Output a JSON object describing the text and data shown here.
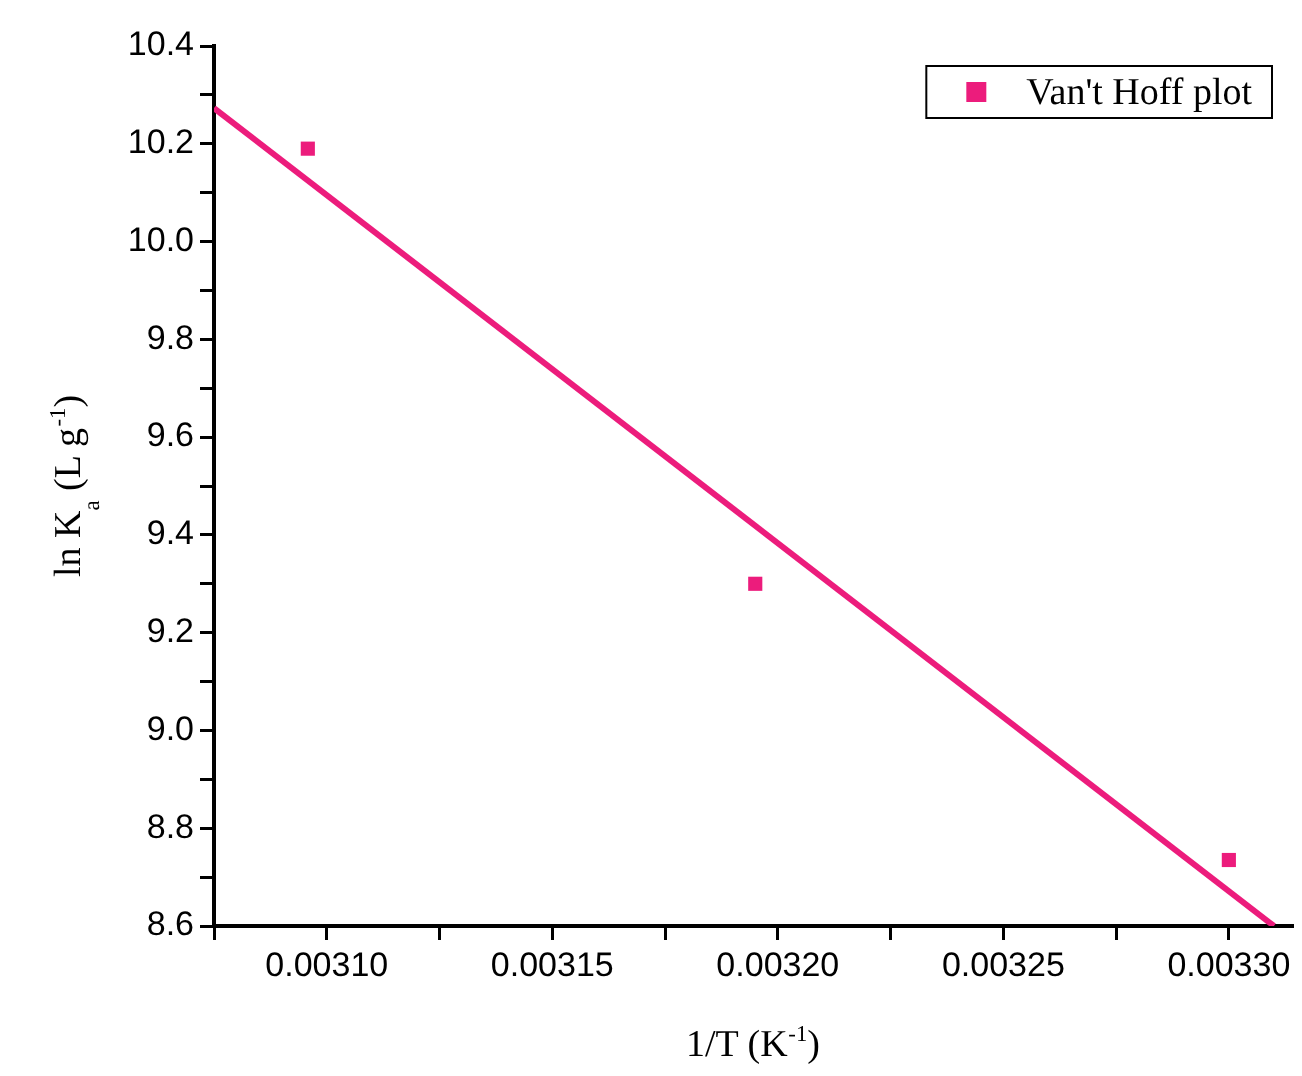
{
  "chart_data": {
    "type": "scatter",
    "xlabel": "1/T (K$^{-1}$)",
    "ylabel": "ln K$_{a}$ (L g$^{-1}$)",
    "xlim": [
      0.003075,
      0.003314
    ],
    "ylim": [
      8.6,
      10.4
    ],
    "xticks": [
      {
        "value": 0.003075,
        "label": null
      },
      {
        "value": 0.0031,
        "label": "0.00310"
      },
      {
        "value": 0.003125,
        "label": null
      },
      {
        "value": 0.00315,
        "label": "0.00315"
      },
      {
        "value": 0.003175,
        "label": null
      },
      {
        "value": 0.0032,
        "label": "0.00320"
      },
      {
        "value": 0.003225,
        "label": null
      },
      {
        "value": 0.00325,
        "label": "0.00325"
      },
      {
        "value": 0.003275,
        "label": null
      },
      {
        "value": 0.0033,
        "label": "0.00330"
      }
    ],
    "yticks": [
      {
        "value": 8.6,
        "label": "8.6"
      },
      {
        "value": 8.7,
        "label": null
      },
      {
        "value": 8.8,
        "label": "8.8"
      },
      {
        "value": 8.9,
        "label": null
      },
      {
        "value": 9.0,
        "label": "9.0"
      },
      {
        "value": 9.1,
        "label": null
      },
      {
        "value": 9.2,
        "label": "9.2"
      },
      {
        "value": 9.3,
        "label": null
      },
      {
        "value": 9.4,
        "label": "9.4"
      },
      {
        "value": 9.5,
        "label": null
      },
      {
        "value": 9.6,
        "label": "9.6"
      },
      {
        "value": 9.7,
        "label": null
      },
      {
        "value": 9.8,
        "label": "9.8"
      },
      {
        "value": 9.9,
        "label": null
      },
      {
        "value": 10.0,
        "label": "10.0"
      },
      {
        "value": 10.1,
        "label": null
      },
      {
        "value": 10.2,
        "label": "10.2"
      },
      {
        "value": 10.3,
        "label": null
      },
      {
        "value": 10.4,
        "label": "10.4"
      }
    ],
    "grid": false,
    "legend": "top right",
    "series": [
      {
        "name": "Van't Hoff plot",
        "color": "#ec1c7c",
        "marker": "square",
        "x": [
          0.0030958,
          0.003195,
          0.0033
        ],
        "values": [
          10.19,
          9.3,
          8.735
        ]
      },
      {
        "type": "line",
        "color": "#ec1c7c",
        "x": [
          0.003075,
          0.00331
        ],
        "values": [
          10.273,
          8.6
        ],
        "marker": "none",
        "line_style": "solid"
      }
    ]
  }
}
